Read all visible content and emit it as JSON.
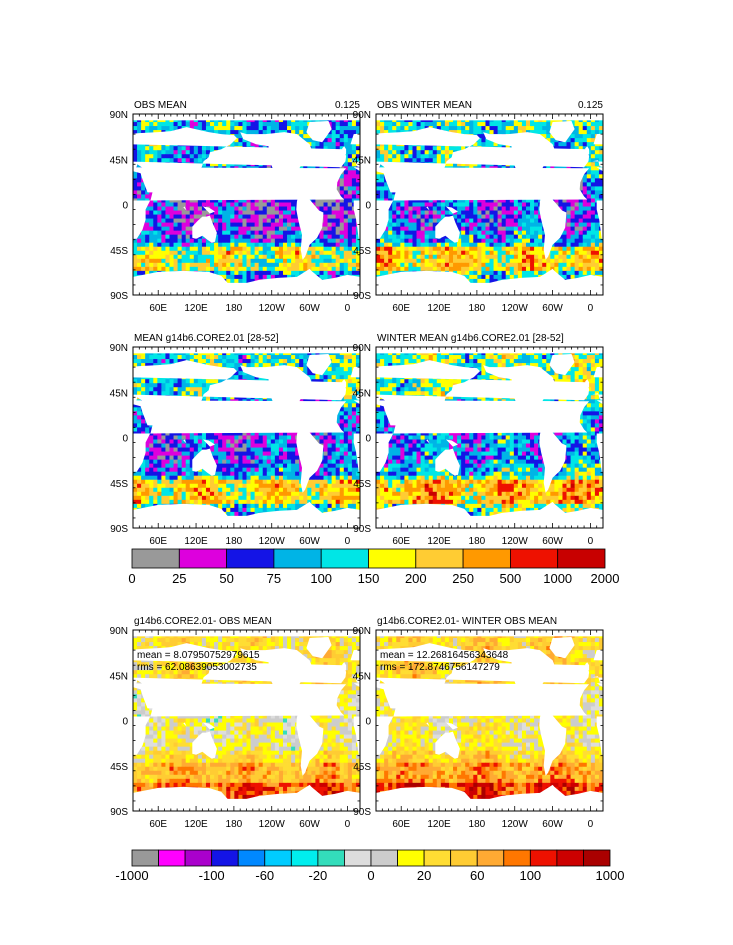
{
  "chart_data": [
    {
      "type": "heatmap",
      "title": "OBS MEAN",
      "corner_label": "0.125",
      "xticks": [
        "60E",
        "120E",
        "180",
        "120W",
        "60W",
        "0"
      ],
      "yticks": [
        "90N",
        "45N",
        "0",
        "45S",
        "90S"
      ],
      "colorbar": "levels"
    },
    {
      "type": "heatmap",
      "title": "OBS WINTER MEAN",
      "corner_label": "0.125",
      "xticks": [
        "60E",
        "120E",
        "180",
        "120W",
        "60W",
        "0"
      ],
      "yticks": [
        "90N",
        "45N",
        "0",
        "45S",
        "90S"
      ],
      "colorbar": "levels"
    },
    {
      "type": "heatmap",
      "title": "MEAN g14b6.CORE2.01 [28-52]",
      "xticks": [
        "60E",
        "120E",
        "180",
        "120W",
        "60W",
        "0"
      ],
      "yticks": [
        "90N",
        "45N",
        "0",
        "45S",
        "90S"
      ],
      "colorbar": "levels"
    },
    {
      "type": "heatmap",
      "title": "WINTER MEAN g14b6.CORE2.01 [28-52]",
      "xticks": [
        "60E",
        "120E",
        "180",
        "120W",
        "60W",
        "0"
      ],
      "yticks": [
        "90N",
        "45N",
        "0",
        "45S",
        "90S"
      ],
      "colorbar": "levels"
    },
    {
      "type": "heatmap",
      "title": "g14b6.CORE2.01- OBS MEAN",
      "stats": [
        "mean = 8.07950752979615",
        "rms = 62.08639053002735"
      ],
      "xticks": [
        "60E",
        "120E",
        "180",
        "120W",
        "60W",
        "0"
      ],
      "yticks": [
        "90N",
        "45N",
        "0",
        "45S",
        "90S"
      ],
      "colorbar": "diff"
    },
    {
      "type": "heatmap",
      "title": "g14b6.CORE2.01- WINTER OBS MEAN",
      "stats": [
        "mean = 12.26816456343648",
        "rms = 172.8746756147279"
      ],
      "xticks": [
        "60E",
        "120E",
        "180",
        "120W",
        "60W",
        "0"
      ],
      "yticks": [
        "90N",
        "45N",
        "0",
        "45S",
        "90S"
      ],
      "colorbar": "diff"
    }
  ],
  "colorbars": {
    "levels": {
      "colors": [
        "#999999",
        "#dd00dd",
        "#1414e6",
        "#00b4e6",
        "#00e6e6",
        "#ffff00",
        "#ffcc33",
        "#ff9900",
        "#ee1100",
        "#c80000"
      ],
      "labels": [
        "0",
        "25",
        "50",
        "75",
        "100",
        "150",
        "200",
        "250",
        "500",
        "1000",
        "2000"
      ]
    },
    "diff": {
      "colors": [
        "#999999",
        "#ff00ff",
        "#aa00cc",
        "#1414e6",
        "#0088ff",
        "#00ccff",
        "#00eeee",
        "#33ddbb",
        "#dddddd",
        "#cccccc",
        "#ffff00",
        "#ffdd33",
        "#ffcc33",
        "#ffaa33",
        "#ff7700",
        "#ee1100",
        "#cc0000",
        "#aa0000"
      ],
      "labels": [
        "-1000",
        "-100",
        "-60",
        "-20",
        "0",
        "20",
        "60",
        "100",
        "1000"
      ]
    }
  }
}
